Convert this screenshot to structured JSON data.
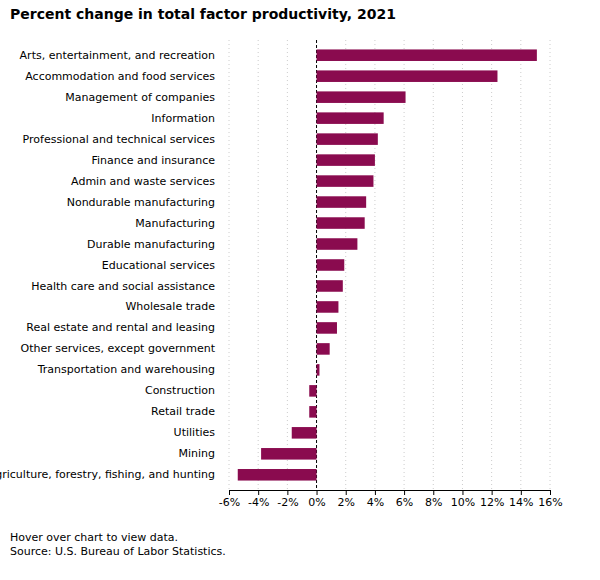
{
  "chart_data": {
    "type": "bar",
    "orientation": "horizontal",
    "title": "Percent change in total factor productivity, 2021",
    "categories": [
      "Arts, entertainment, and recreation",
      "Accommodation and food services",
      "Management of companies",
      "Information",
      "Professional and technical services",
      "Finance and insurance",
      "Admin and waste services",
      "Nondurable manufacturing",
      "Manufacturing",
      "Durable manufacturing",
      "Educational services",
      "Health care and social assistance",
      "Wholesale trade",
      "Real estate and rental and leasing",
      "Other services, except government",
      "Transportation and warehousing",
      "Construction",
      "Retail trade",
      "Utilities",
      "Mining",
      "Agriculture, forestry, fishing, and hunting"
    ],
    "values": [
      15.1,
      12.4,
      6.1,
      4.6,
      4.2,
      4.0,
      3.9,
      3.4,
      3.3,
      2.8,
      1.9,
      1.8,
      1.5,
      1.4,
      0.9,
      0.2,
      -0.5,
      -0.5,
      -1.7,
      -3.8,
      -5.4
    ],
    "color": "#8a0b4f",
    "xlim": [
      -6,
      16
    ],
    "xticks": [
      {
        "value": -6,
        "label": "-6%"
      },
      {
        "value": -4,
        "label": "-4%"
      },
      {
        "value": -2,
        "label": "-2%"
      },
      {
        "value": 0,
        "label": "0%"
      },
      {
        "value": 2,
        "label": "2%"
      },
      {
        "value": 4,
        "label": "4%"
      },
      {
        "value": 6,
        "label": "6%"
      },
      {
        "value": 8,
        "label": "8%"
      },
      {
        "value": 10,
        "label": "10%"
      },
      {
        "value": 12,
        "label": "12%"
      },
      {
        "value": 14,
        "label": "14%"
      },
      {
        "value": 16,
        "label": "16%"
      }
    ],
    "grid": true,
    "annotations": [
      "Hover over chart to view data.",
      "Source: U.S. Bureau of Labor Statistics."
    ]
  }
}
